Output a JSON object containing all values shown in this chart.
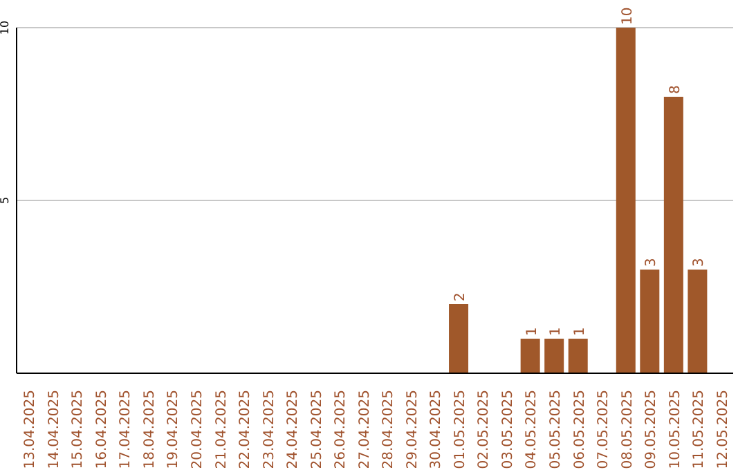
{
  "chart_data": {
    "type": "bar",
    "categories": [
      "13.04.2025",
      "14.04.2025",
      "15.04.2025",
      "16.04.2025",
      "17.04.2025",
      "18.04.2025",
      "19.04.2025",
      "20.04.2025",
      "21.04.2025",
      "22.04.2025",
      "23.04.2025",
      "24.04.2025",
      "25.04.2025",
      "26.04.2025",
      "27.04.2025",
      "28.04.2025",
      "29.04.2025",
      "30.04.2025",
      "01.05.2025",
      "02.05.2025",
      "03.05.2025",
      "04.05.2025",
      "05.05.2025",
      "06.05.2025",
      "07.05.2025",
      "08.05.2025",
      "09.05.2025",
      "10.05.2025",
      "11.05.2025",
      "12.05.2025"
    ],
    "values": [
      null,
      null,
      null,
      null,
      null,
      null,
      null,
      null,
      null,
      null,
      null,
      null,
      null,
      null,
      null,
      null,
      null,
      null,
      2,
      null,
      null,
      1,
      1,
      1,
      null,
      10,
      3,
      8,
      3,
      null
    ],
    "color": "#a0582a",
    "ylim": [
      0,
      10
    ],
    "yticks": [
      5,
      10
    ],
    "grid": "y",
    "data_labels": true
  }
}
